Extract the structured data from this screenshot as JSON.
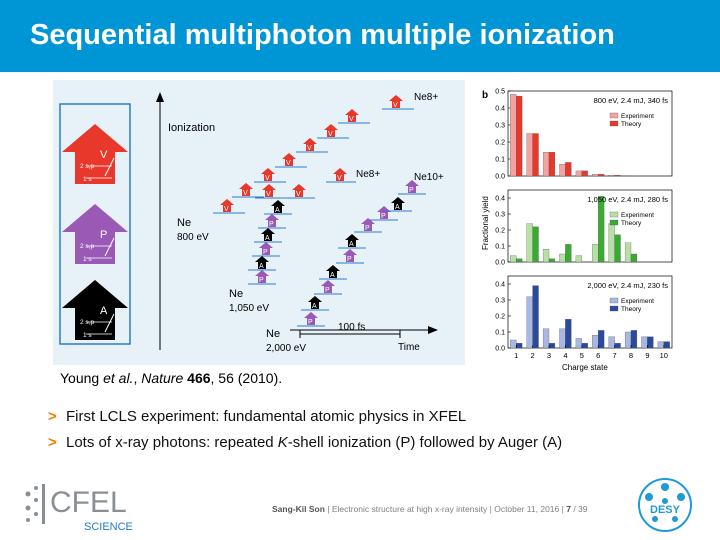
{
  "slide": {
    "title": "Sequential multiphoton multiple ionization",
    "citation": {
      "authors": "Young ",
      "etal": "et al.",
      "journal": "Nature",
      "volume": "466",
      "pages": ", 56 (2010)."
    },
    "bullets": [
      {
        "marker": ">",
        "parts": [
          "First LCLS experiment: fundamental atomic physics in XFEL"
        ]
      },
      {
        "marker": ">",
        "parts": [
          "Lots of x-ray photons: repeated ",
          "K",
          "-shell ionization (P) followed by Auger (A)"
        ]
      }
    ],
    "footer": {
      "author": "Sang-Kil Son",
      "sep": " | ",
      "talk": "Electronic structure at high x-ray intensity",
      "date": "October 11, 2016",
      "page": "7",
      "total": "/ 39"
    },
    "logos": {
      "cfel_main": "CFEL",
      "cfel_sub": "SCIENCE",
      "desy": "DESY"
    }
  },
  "scheme": {
    "panels": [
      {
        "letter": "V",
        "color": "#e8382b",
        "upper": "2 s,p",
        "lower": "1 s"
      },
      {
        "letter": "P",
        "color": "#9b59b6",
        "upper": "2 s,p",
        "lower": "1 s"
      },
      {
        "letter": "A",
        "color": "#000000",
        "upper": "2 s,p",
        "lower": "1 s"
      }
    ],
    "y_label": "Ionization",
    "x_label": "Time",
    "scale_bar": "100 fs",
    "start_labels": [
      {
        "species": "Ne",
        "energy": "800 eV"
      },
      {
        "species": "Ne",
        "energy": "1,050 eV"
      },
      {
        "species": "Ne",
        "energy": "2,000 eV"
      }
    ],
    "end_labels": [
      "Ne8+",
      "Ne8+",
      "Ne10+"
    ]
  },
  "chart_data": {
    "type": "bar",
    "panel_letter": "b",
    "xlabel": "Charge state",
    "ylabel": "Fractional yield",
    "categories": [
      "1",
      "2",
      "3",
      "4",
      "5",
      "6",
      "7",
      "8",
      "9",
      "10"
    ],
    "panels": [
      {
        "title": "800 eV, 2.4 mJ, 340 fs",
        "ylim": [
          0,
          0.5
        ],
        "yticks": [
          "0.0",
          "0.1",
          "0.2",
          "0.3",
          "0.4",
          "0.5"
        ],
        "colors": {
          "experiment": "#f4a3a3",
          "theory": "#e8382b"
        },
        "series": [
          {
            "name": "Experiment",
            "values": [
              0.48,
              0.25,
              0.14,
              0.07,
              0.03,
              0.01,
              0.005,
              0.003,
              0.0,
              0.0
            ]
          },
          {
            "name": "Theory",
            "values": [
              0.47,
              0.25,
              0.14,
              0.08,
              0.03,
              0.01,
              0.005,
              0.002,
              0.0,
              0.0
            ]
          }
        ]
      },
      {
        "title": "1,050 eV, 2.4 mJ, 280 fs",
        "ylim": [
          0,
          0.45
        ],
        "yticks": [
          "0.0",
          "0.1",
          "0.2",
          "0.3",
          "0.4"
        ],
        "colors": {
          "experiment": "#b7e0a5",
          "theory": "#3aaa35"
        },
        "series": [
          {
            "name": "Experiment",
            "values": [
              0.04,
              0.24,
              0.08,
              0.05,
              0.04,
              0.11,
              0.24,
              0.12,
              0.0,
              0.0
            ]
          },
          {
            "name": "Theory",
            "values": [
              0.02,
              0.22,
              0.02,
              0.11,
              0.0,
              0.41,
              0.17,
              0.05,
              0.0,
              0.0
            ]
          }
        ]
      },
      {
        "title": "2,000 eV, 2.4 mJ, 230 fs",
        "ylim": [
          0,
          0.45
        ],
        "yticks": [
          "0.0",
          "0.1",
          "0.2",
          "0.3",
          "0.4"
        ],
        "colors": {
          "experiment": "#a9b8e2",
          "theory": "#2a4a9c"
        },
        "series": [
          {
            "name": "Experiment",
            "values": [
              0.05,
              0.32,
              0.12,
              0.12,
              0.06,
              0.08,
              0.07,
              0.1,
              0.07,
              0.04
            ]
          },
          {
            "name": "Theory",
            "values": [
              0.03,
              0.39,
              0.03,
              0.18,
              0.03,
              0.11,
              0.03,
              0.11,
              0.07,
              0.04
            ]
          }
        ]
      }
    ],
    "legend": [
      "Experiment",
      "Theory"
    ],
    "legend_position": "top-right"
  }
}
